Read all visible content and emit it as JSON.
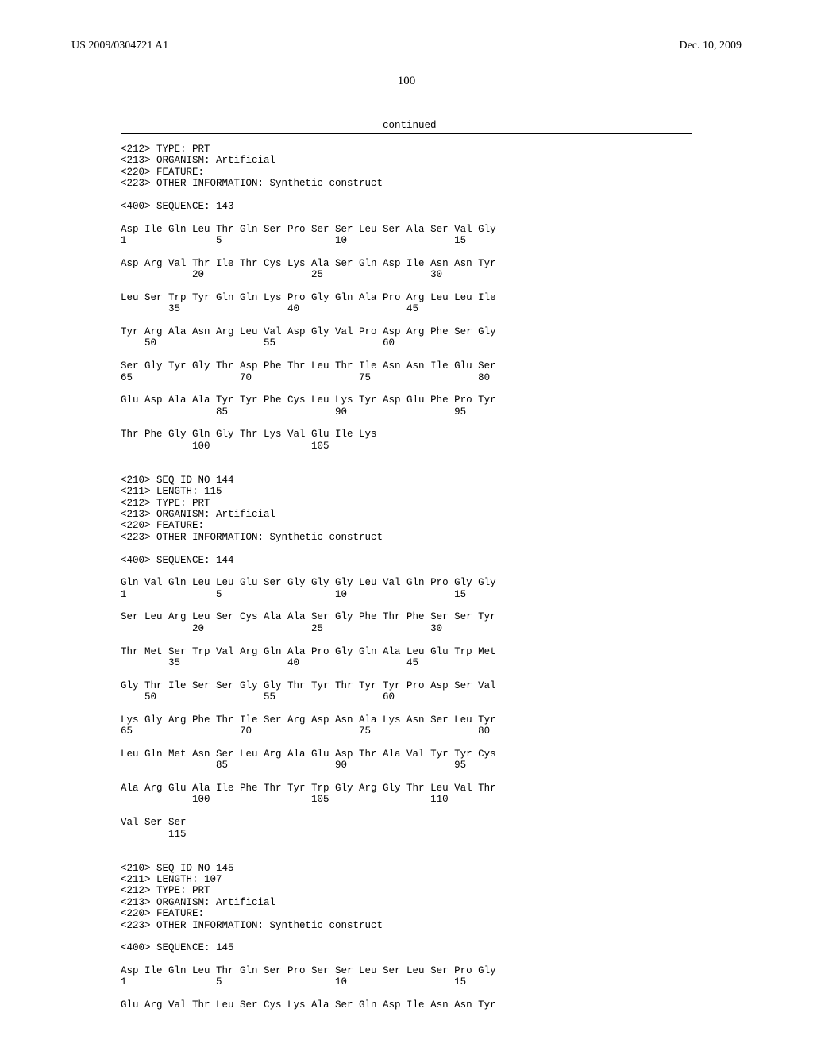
{
  "header": {
    "pub_number": "US 2009/0304721 A1",
    "pub_date": "Dec. 10, 2009"
  },
  "page_number": "100",
  "continued_label": "-continued",
  "seq143": {
    "tags": [
      "<212> TYPE: PRT",
      "<213> ORGANISM: Artificial",
      "<220> FEATURE:",
      "<223> OTHER INFORMATION: Synthetic construct"
    ],
    "seq_label": "<400> SEQUENCE: 143",
    "rows": [
      {
        "aa": "Asp Ile Gln Leu Thr Gln Ser Pro Ser Ser Leu Ser Ala Ser Val Gly",
        "nums": "1               5                   10                  15"
      },
      {
        "aa": "Asp Arg Val Thr Ile Thr Cys Lys Ala Ser Gln Asp Ile Asn Asn Tyr",
        "nums": "            20                  25                  30"
      },
      {
        "aa": "Leu Ser Trp Tyr Gln Gln Lys Pro Gly Gln Ala Pro Arg Leu Leu Ile",
        "nums": "        35                  40                  45"
      },
      {
        "aa": "Tyr Arg Ala Asn Arg Leu Val Asp Gly Val Pro Asp Arg Phe Ser Gly",
        "nums": "    50                  55                  60"
      },
      {
        "aa": "Ser Gly Tyr Gly Thr Asp Phe Thr Leu Thr Ile Asn Asn Ile Glu Ser",
        "nums": "65                  70                  75                  80"
      },
      {
        "aa": "Glu Asp Ala Ala Tyr Tyr Phe Cys Leu Lys Tyr Asp Glu Phe Pro Tyr",
        "nums": "                85                  90                  95"
      },
      {
        "aa": "Thr Phe Gly Gln Gly Thr Lys Val Glu Ile Lys",
        "nums": "            100                 105"
      }
    ]
  },
  "seq144": {
    "tags": [
      "<210> SEQ ID NO 144",
      "<211> LENGTH: 115",
      "<212> TYPE: PRT",
      "<213> ORGANISM: Artificial",
      "<220> FEATURE:",
      "<223> OTHER INFORMATION: Synthetic construct"
    ],
    "seq_label": "<400> SEQUENCE: 144",
    "rows": [
      {
        "aa": "Gln Val Gln Leu Leu Glu Ser Gly Gly Gly Leu Val Gln Pro Gly Gly",
        "nums": "1               5                   10                  15"
      },
      {
        "aa": "Ser Leu Arg Leu Ser Cys Ala Ala Ser Gly Phe Thr Phe Ser Ser Tyr",
        "nums": "            20                  25                  30"
      },
      {
        "aa": "Thr Met Ser Trp Val Arg Gln Ala Pro Gly Gln Ala Leu Glu Trp Met",
        "nums": "        35                  40                  45"
      },
      {
        "aa": "Gly Thr Ile Ser Ser Gly Gly Thr Tyr Thr Tyr Tyr Pro Asp Ser Val",
        "nums": "    50                  55                  60"
      },
      {
        "aa": "Lys Gly Arg Phe Thr Ile Ser Arg Asp Asn Ala Lys Asn Ser Leu Tyr",
        "nums": "65                  70                  75                  80"
      },
      {
        "aa": "Leu Gln Met Asn Ser Leu Arg Ala Glu Asp Thr Ala Val Tyr Tyr Cys",
        "nums": "                85                  90                  95"
      },
      {
        "aa": "Ala Arg Glu Ala Ile Phe Thr Tyr Trp Gly Arg Gly Thr Leu Val Thr",
        "nums": "            100                 105                 110"
      },
      {
        "aa": "Val Ser Ser",
        "nums": "        115"
      }
    ]
  },
  "seq145": {
    "tags": [
      "<210> SEQ ID NO 145",
      "<211> LENGTH: 107",
      "<212> TYPE: PRT",
      "<213> ORGANISM: Artificial",
      "<220> FEATURE:",
      "<223> OTHER INFORMATION: Synthetic construct"
    ],
    "seq_label": "<400> SEQUENCE: 145",
    "rows": [
      {
        "aa": "Asp Ile Gln Leu Thr Gln Ser Pro Ser Ser Leu Ser Leu Ser Pro Gly",
        "nums": "1               5                   10                  15"
      },
      {
        "aa": "Glu Arg Val Thr Leu Ser Cys Lys Ala Ser Gln Asp Ile Asn Asn Tyr",
        "nums": ""
      }
    ]
  }
}
